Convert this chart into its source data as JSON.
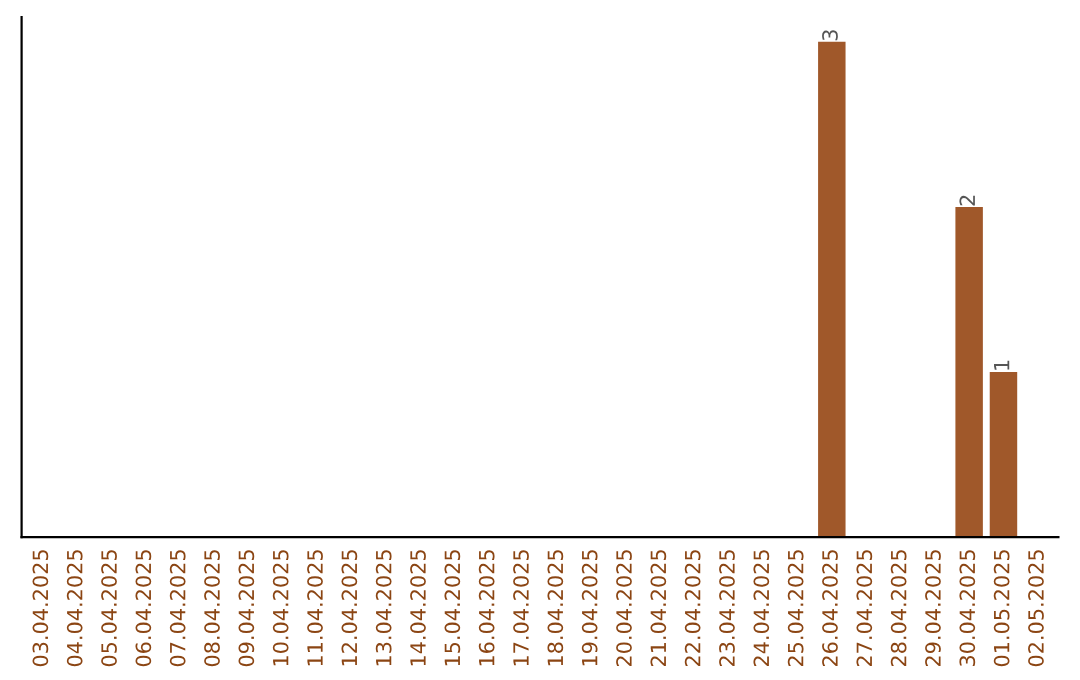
{
  "chart_data": {
    "type": "bar",
    "categories": [
      "03.04.2025",
      "04.04.2025",
      "05.04.2025",
      "06.04.2025",
      "07.04.2025",
      "08.04.2025",
      "09.04.2025",
      "10.04.2025",
      "11.04.2025",
      "12.04.2025",
      "13.04.2025",
      "14.04.2025",
      "15.04.2025",
      "16.04.2025",
      "17.04.2025",
      "18.04.2025",
      "19.04.2025",
      "20.04.2025",
      "21.04.2025",
      "22.04.2025",
      "23.04.2025",
      "24.04.2025",
      "25.04.2025",
      "26.04.2025",
      "27.04.2025",
      "28.04.2025",
      "29.04.2025",
      "30.04.2025",
      "01.05.2025",
      "02.05.2025"
    ],
    "values": [
      null,
      null,
      null,
      null,
      null,
      null,
      null,
      null,
      null,
      null,
      null,
      null,
      null,
      null,
      null,
      null,
      null,
      null,
      null,
      null,
      null,
      null,
      null,
      3,
      null,
      null,
      null,
      2,
      1,
      null
    ],
    "color": "#a0582a",
    "tick_labels": "x",
    "grid": false,
    "data_labels": true
  }
}
